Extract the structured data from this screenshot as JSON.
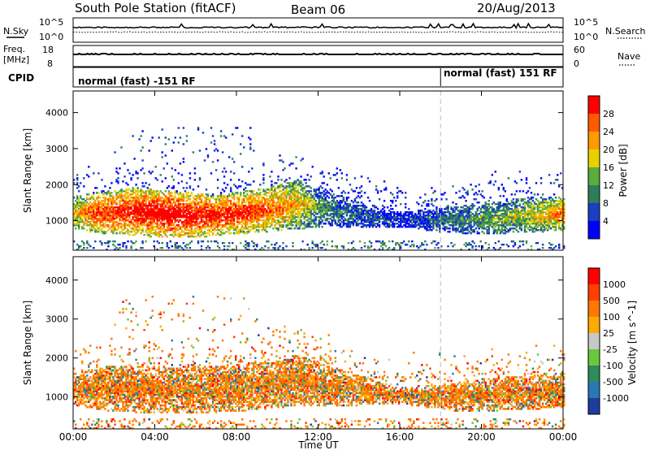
{
  "header": {
    "station": "South Pole Station (fitACF)",
    "beam": "Beam 06",
    "date": "20/Aug/2013"
  },
  "top_panels": {
    "nsky_label": "N.Sky",
    "nsearch_label": "N.Search",
    "noise_tick_hi": "10^5",
    "noise_tick_lo": "10^0",
    "freq_label_1": "Freq.",
    "freq_label_2": "[MHz]",
    "freq_tick_hi": "18",
    "freq_tick_lo": "8",
    "nave_label": "Nave",
    "nave_tick_hi": "60",
    "nave_tick_lo": "0",
    "cpid_label": "CPID",
    "cpid_segments": [
      {
        "text": "normal (fast) -151 RF"
      },
      {
        "text": "normal (fast) 151 RF"
      }
    ],
    "cpid_change_time_h": 18.0
  },
  "chart_data": [
    {
      "type": "heatmap",
      "parameter": "Power",
      "xlabel": "",
      "ylabel": "Slant Range [km]",
      "x_range_h": [
        0,
        24
      ],
      "ylim": [
        180,
        4600
      ],
      "yticks": [
        "1000",
        "2000",
        "3000",
        "4000"
      ],
      "colorbar": {
        "label": "Power [dB]",
        "range": [
          0,
          32
        ],
        "ticks": [
          "4",
          "8",
          "12",
          "16",
          "20",
          "24",
          "28"
        ],
        "colors": [
          "#0000ff",
          "#1a3fc0",
          "#2e7d5a",
          "#5aad3a",
          "#e6d200",
          "#ff9a00",
          "#ff5a00",
          "#ff0000"
        ]
      },
      "echo_band": [
        {
          "t": 0.0,
          "lo": 750,
          "hi": 1650,
          "level": 0.55
        },
        {
          "t": 1.0,
          "lo": 650,
          "hi": 1750,
          "level": 0.75
        },
        {
          "t": 3.0,
          "lo": 550,
          "hi": 1900,
          "level": 0.9
        },
        {
          "t": 5.0,
          "lo": 500,
          "hi": 1800,
          "level": 0.95
        },
        {
          "t": 7.0,
          "lo": 550,
          "hi": 1700,
          "level": 0.85
        },
        {
          "t": 9.0,
          "lo": 650,
          "hi": 1850,
          "level": 0.8
        },
        {
          "t": 11.0,
          "lo": 750,
          "hi": 2100,
          "level": 0.6
        },
        {
          "t": 12.0,
          "lo": 800,
          "hi": 1900,
          "level": 0.35
        },
        {
          "t": 14.0,
          "lo": 800,
          "hi": 1500,
          "level": 0.2
        },
        {
          "t": 16.0,
          "lo": 800,
          "hi": 1200,
          "level": 0.12
        },
        {
          "t": 18.0,
          "lo": 650,
          "hi": 1350,
          "level": 0.25
        },
        {
          "t": 20.0,
          "lo": 600,
          "hi": 1450,
          "level": 0.35
        },
        {
          "t": 22.0,
          "lo": 650,
          "hi": 1600,
          "level": 0.45
        },
        {
          "t": 24.0,
          "lo": 700,
          "hi": 1650,
          "level": 0.7
        }
      ]
    },
    {
      "type": "heatmap",
      "parameter": "Velocity",
      "xlabel": "Time UT",
      "ylabel": "Slant Range [km]",
      "x_range_h": [
        0,
        24
      ],
      "ylim": [
        180,
        4600
      ],
      "xticks": [
        "00:00",
        "04:00",
        "08:00",
        "12:00",
        "16:00",
        "20:00",
        "00:00"
      ],
      "yticks": [
        "1000",
        "2000",
        "3000",
        "4000"
      ],
      "colorbar": {
        "label": "Velocity [m s^-1]",
        "ticks": [
          "1000",
          "500",
          "100",
          "25",
          "-25",
          "-100",
          "-500",
          "-1000"
        ],
        "colors": [
          "#1e3ca0",
          "#2878b4",
          "#2e8c5a",
          "#6ac83c",
          "#c8c8c8",
          "#ffaa00",
          "#ff7800",
          "#ff4000",
          "#ff0000"
        ]
      },
      "echo_band": [
        {
          "t": 0.0,
          "lo": 750,
          "hi": 1600,
          "level": 0.65
        },
        {
          "t": 2.0,
          "lo": 600,
          "hi": 1800,
          "level": 0.7
        },
        {
          "t": 5.0,
          "lo": 550,
          "hi": 1750,
          "level": 0.75
        },
        {
          "t": 8.0,
          "lo": 600,
          "hi": 1800,
          "level": 0.75
        },
        {
          "t": 11.0,
          "lo": 750,
          "hi": 2050,
          "level": 0.7
        },
        {
          "t": 13.0,
          "lo": 750,
          "hi": 1700,
          "level": 0.6
        },
        {
          "t": 16.0,
          "lo": 800,
          "hi": 1200,
          "level": 0.6
        },
        {
          "t": 19.0,
          "lo": 600,
          "hi": 1350,
          "level": 0.65
        },
        {
          "t": 22.0,
          "lo": 650,
          "hi": 1550,
          "level": 0.6
        },
        {
          "t": 24.0,
          "lo": 700,
          "hi": 1600,
          "level": 0.6
        }
      ]
    }
  ]
}
